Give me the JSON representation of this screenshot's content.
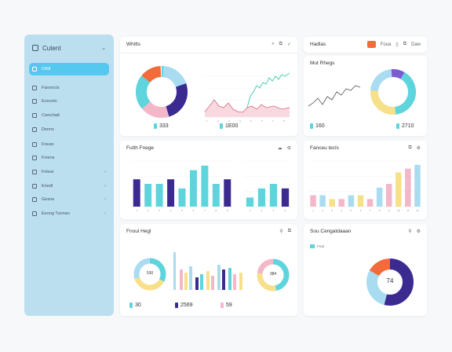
{
  "sidebar": {
    "title": "Cutent",
    "items": [
      {
        "label": "Cthtl",
        "active": true
      },
      {
        "label": "Fanoncts"
      },
      {
        "label": "Ececnts"
      },
      {
        "label": "Cwnchatt"
      },
      {
        "label": "Denns"
      },
      {
        "label": "Fnean"
      },
      {
        "label": "Fniens"
      },
      {
        "label": "Fnlear"
      },
      {
        "label": "Enedl"
      },
      {
        "label": "Gesne"
      },
      {
        "label": "Eeong Tunnan"
      }
    ]
  },
  "cards": {
    "whitts": {
      "title": "Whitts",
      "stat1": "333",
      "stat2": "1E00"
    },
    "hadlas": {
      "title": "Hadlas",
      "tool_label1": "Foua",
      "tool_label2": "Daw"
    },
    "mut_rhegs": {
      "title": "Mut Rhegs",
      "stat1": "160",
      "stat2": "2710"
    },
    "futth": {
      "title": "Futth Fnege"
    },
    "fanceu": {
      "title": "Fanceu tecls"
    },
    "fnoul": {
      "title": "Fnoul Hegl",
      "donut1": "530",
      "donut2": "384",
      "stat1": "30",
      "stat2": "2569",
      "stat3": "59"
    },
    "sou": {
      "title": "Sou Cengatdaaan",
      "legend": "Frait",
      "donut": "74"
    }
  },
  "colors": {
    "accent": "#55c8f0",
    "teal": "#5ed4dc",
    "navy": "#3b2a8f",
    "orange": "#f26b3a",
    "pink": "#f4b7c8",
    "yellow": "#f7e08a",
    "lightblue": "#a9dcf0",
    "purple": "#7a5bd0"
  },
  "chart_data": [
    {
      "type": "bar",
      "categories": [
        "1",
        "2",
        "3",
        "4",
        "5",
        "6",
        "7",
        "8",
        "9"
      ],
      "values": [
        6,
        5,
        5,
        6,
        4,
        8,
        9,
        5,
        6
      ]
    },
    {
      "type": "bar",
      "categories": [
        "1",
        "2",
        "3",
        "4"
      ],
      "values": [
        2,
        4,
        5,
        4
      ]
    },
    {
      "type": "bar",
      "categories": [
        "1",
        "2",
        "3",
        "4",
        "5",
        "6",
        "7",
        "8",
        "9",
        "10",
        "11",
        "12"
      ],
      "values": [
        3,
        3,
        2,
        2,
        3,
        3,
        2,
        5,
        6,
        9,
        10,
        11
      ]
    }
  ]
}
